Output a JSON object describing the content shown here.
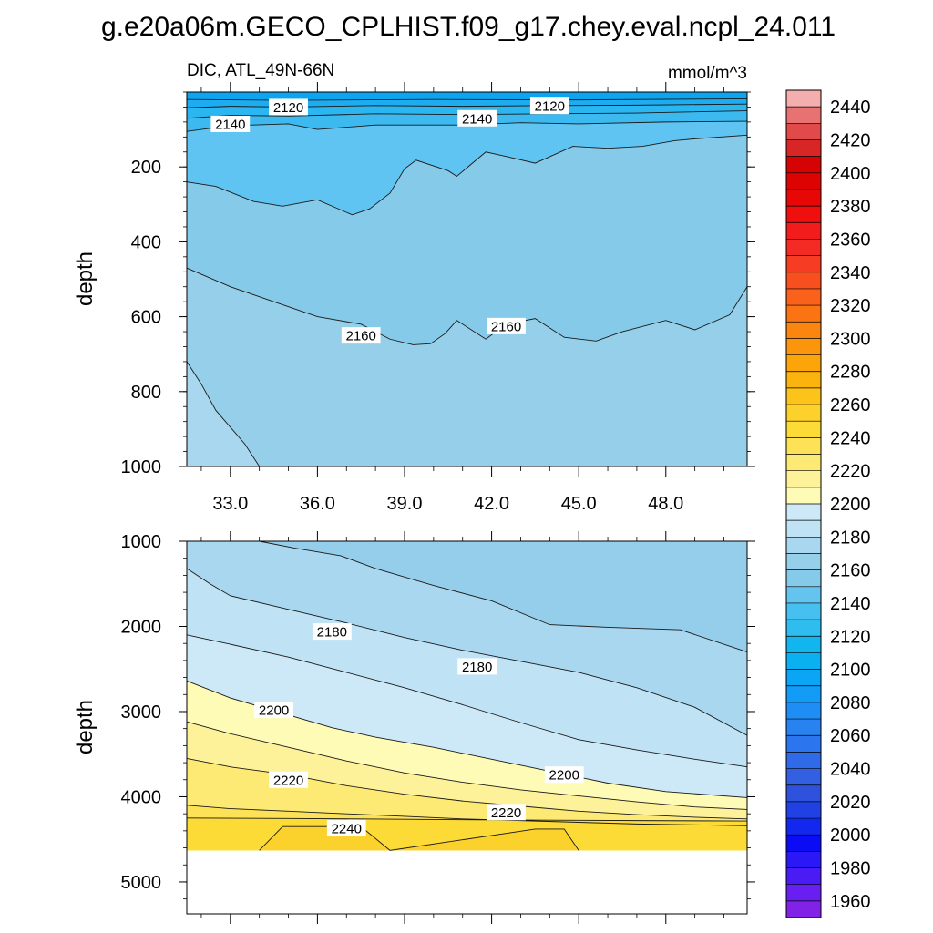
{
  "chart_data": [
    {
      "type": "contour",
      "panel": "top",
      "title": "g.e20a06m.GECO_CPLHIST.f09_g17.chey.eval.ncpl_24.011",
      "subtitle_left": "DIC, ATL_49N-66N",
      "subtitle_right": "mmol/m^3",
      "ylabel": "depth",
      "xlabel": "",
      "xlim": [
        31.5,
        50.8
      ],
      "ylim": [
        1000,
        0
      ],
      "y_reversed": true,
      "xticks": [
        "33.0",
        "36.0",
        "39.0",
        "42.0",
        "45.0",
        "48.0"
      ],
      "xtick_values": [
        33,
        36,
        39,
        42,
        45,
        48
      ],
      "yticks": [
        "200",
        "400",
        "600",
        "800",
        "1000"
      ],
      "ytick_values": [
        200,
        400,
        600,
        800,
        1000
      ],
      "contour_labels": [
        {
          "text": "2120",
          "x": 35.0,
          "y": 40
        },
        {
          "text": "2140",
          "x": 33.0,
          "y": 85
        },
        {
          "text": "2140",
          "x": 41.5,
          "y": 70
        },
        {
          "text": "2120",
          "x": 44.0,
          "y": 37
        },
        {
          "text": "2160",
          "x": 37.5,
          "y": 650
        },
        {
          "text": "2160",
          "x": 42.5,
          "y": 625
        }
      ],
      "contour_lines": [
        {
          "level": 2110,
          "x": [
            31.5,
            35,
            40,
            45,
            50.8
          ],
          "y": [
            20,
            22,
            20,
            21,
            18
          ]
        },
        {
          "level": 2120,
          "x": [
            31.5,
            33,
            35,
            38,
            41,
            44,
            47,
            50.8
          ],
          "y": [
            42,
            38,
            40,
            36,
            38,
            36,
            35,
            32
          ]
        },
        {
          "level": 2130,
          "x": [
            31.5,
            33,
            35,
            38,
            41,
            44,
            47,
            50.8
          ],
          "y": [
            70,
            62,
            64,
            58,
            60,
            58,
            56,
            50
          ]
        },
        {
          "level": 2140,
          "x": [
            31.5,
            33,
            35,
            36,
            38,
            41,
            43,
            45,
            48,
            50.8
          ],
          "y": [
            105,
            90,
            85,
            100,
            88,
            88,
            82,
            85,
            80,
            78
          ]
        },
        {
          "level": 2150,
          "x": [
            31.5,
            32.5,
            33.8,
            34.8,
            36,
            37.2,
            37.8,
            38.5,
            39.0,
            39.4,
            40.5,
            40.8,
            41.8,
            42.5,
            43.5,
            44.8,
            46.0,
            47.2,
            48.3,
            49.0,
            50.8
          ],
          "y": [
            240,
            252,
            292,
            305,
            288,
            328,
            312,
            270,
            205,
            182,
            210,
            225,
            160,
            172,
            190,
            145,
            150,
            145,
            130,
            125,
            115
          ]
        },
        {
          "level": 2160,
          "x": [
            31.5,
            33.0,
            34.5,
            36.0,
            37.5,
            38.5,
            39.3,
            39.9,
            40.4,
            40.8,
            41.8,
            42.5,
            43.5,
            44.5,
            45.6,
            46.5,
            48.0,
            49.0,
            50.2,
            50.8
          ],
          "y": [
            470,
            520,
            560,
            600,
            620,
            660,
            675,
            672,
            645,
            610,
            660,
            620,
            605,
            655,
            665,
            640,
            610,
            635,
            595,
            520
          ]
        },
        {
          "level": 2170,
          "x": [
            31.5,
            32.0,
            32.5,
            33.5,
            34.0
          ],
          "y": [
            720,
            780,
            850,
            940,
            1000
          ]
        }
      ],
      "fill_bands": [
        {
          "from": "top",
          "to": 2110,
          "color": "#0ea5ef"
        },
        {
          "from": 2110,
          "to": 2120,
          "color": "#1cacef"
        },
        {
          "from": 2120,
          "to": 2130,
          "color": "#2ab6f0"
        },
        {
          "from": 2130,
          "to": 2140,
          "color": "#3cbaf0"
        },
        {
          "from": 2140,
          "to": 2150,
          "color": "#5fc4f1"
        },
        {
          "from": 2150,
          "to": 2160,
          "color": "#86caea"
        },
        {
          "from": 2160,
          "to": 2170,
          "color": "#96cfea"
        },
        {
          "from": 2170,
          "to": "bottom",
          "color": "#a8d7ef"
        }
      ]
    },
    {
      "type": "contour",
      "panel": "bottom",
      "ylabel": "depth",
      "xlim": [
        31.5,
        50.8
      ],
      "ylim": [
        5375,
        1000
      ],
      "y_reversed": true,
      "yticks": [
        "1000",
        "2000",
        "3000",
        "4000",
        "5000"
      ],
      "ytick_values": [
        1000,
        2000,
        3000,
        4000,
        5000
      ],
      "data_bottom_depth": 4630,
      "contour_labels": [
        {
          "text": "2180",
          "x": 36.5,
          "y": 2060
        },
        {
          "text": "2180",
          "x": 41.5,
          "y": 2470
        },
        {
          "text": "2200",
          "x": 34.5,
          "y": 2980
        },
        {
          "text": "2200",
          "x": 44.5,
          "y": 3740
        },
        {
          "text": "2220",
          "x": 35.0,
          "y": 3800
        },
        {
          "text": "2220",
          "x": 42.5,
          "y": 4180
        },
        {
          "text": "2240",
          "x": 37.0,
          "y": 4370
        }
      ],
      "contour_lines": [
        {
          "level": 2170,
          "x": [
            34.0,
            35.2,
            36.8,
            38.0,
            40.0,
            42.0,
            44.0,
            46.0,
            48.5,
            50.8
          ],
          "y": [
            1000,
            1080,
            1170,
            1320,
            1520,
            1700,
            1980,
            2010,
            2040,
            2300
          ]
        },
        {
          "level": 2180,
          "x": [
            31.5,
            32.3,
            33.0,
            35.0,
            37.0,
            39.0,
            41.0,
            43.0,
            45.0,
            47.0,
            49.0,
            50.8
          ],
          "y": [
            1320,
            1500,
            1640,
            1800,
            1960,
            2130,
            2280,
            2410,
            2540,
            2720,
            2950,
            3280
          ]
        },
        {
          "level": 2190,
          "x": [
            31.5,
            33.0,
            35.0,
            37.0,
            39.0,
            41.0,
            43.0,
            45.0,
            47.0,
            49.0,
            50.8
          ],
          "y": [
            2100,
            2210,
            2360,
            2540,
            2720,
            2920,
            3130,
            3330,
            3450,
            3560,
            3650
          ]
        },
        {
          "level": 2200,
          "x": [
            31.5,
            33.0,
            35.0,
            36.5,
            38.0,
            40.0,
            42.0,
            44.0,
            46.0,
            48.0,
            50.8
          ],
          "y": [
            2640,
            2840,
            3040,
            3190,
            3300,
            3420,
            3560,
            3700,
            3840,
            3940,
            4010
          ]
        },
        {
          "level": 2210,
          "x": [
            31.5,
            33.0,
            35.0,
            37.0,
            39.0,
            41.0,
            43.0,
            45.0,
            47.0,
            49.0,
            50.8
          ],
          "y": [
            3120,
            3260,
            3420,
            3580,
            3720,
            3830,
            3920,
            3990,
            4060,
            4120,
            4150
          ]
        },
        {
          "level": 2220,
          "x": [
            31.5,
            33.0,
            35.0,
            37.0,
            39.0,
            41.0,
            43.0,
            45.0,
            47.0,
            49.0,
            50.8
          ],
          "y": [
            3550,
            3650,
            3740,
            3870,
            3970,
            4050,
            4110,
            4170,
            4210,
            4240,
            4260
          ]
        },
        {
          "level": 2230,
          "x": [
            31.5,
            33.0,
            35.0,
            37.0,
            39.0,
            41.0,
            43.0,
            45.0,
            47.0,
            49.0,
            50.8
          ],
          "y": [
            4100,
            4140,
            4170,
            4200,
            4230,
            4260,
            4280,
            4300,
            4320,
            4330,
            4340
          ]
        },
        {
          "level": 2235,
          "x": [
            31.5,
            35.0,
            38.0,
            41.0,
            44.0,
            47.0,
            50.8
          ],
          "y": [
            4250,
            4255,
            4262,
            4270,
            4275,
            4280,
            4285
          ]
        },
        {
          "level": 2240,
          "x": [
            34.0,
            34.8,
            37.5,
            38.5,
            43.5,
            44.5,
            45.0
          ],
          "y": [
            4630,
            4350,
            4350,
            4630,
            4380,
            4380,
            4630
          ],
          "closed_region": true
        }
      ],
      "fill_bands": [
        {
          "from": "top",
          "to": 2170,
          "color": "#95ceea"
        },
        {
          "from": 2170,
          "to": 2180,
          "color": "#a8d7ef"
        },
        {
          "from": 2180,
          "to": 2190,
          "color": "#bfe2f4"
        },
        {
          "from": 2190,
          "to": 2200,
          "color": "#cde9f8"
        },
        {
          "from": 2200,
          "to": 2210,
          "color": "#fdfbb6"
        },
        {
          "from": 2210,
          "to": 2220,
          "color": "#fdf29a"
        },
        {
          "from": 2220,
          "to": 2230,
          "color": "#fdea74"
        },
        {
          "from": 2230,
          "to": 2235,
          "color": "#fde258"
        },
        {
          "from": 2235,
          "to": "bottom",
          "color": "#fddb37"
        },
        {
          "from": "inner",
          "to": 2240,
          "color": "#fbd12b"
        }
      ]
    }
  ],
  "colorbar": {
    "title": "mmol/m^3",
    "levels": [
      1960,
      1970,
      1980,
      1990,
      2000,
      2010,
      2020,
      2030,
      2040,
      2050,
      2060,
      2070,
      2080,
      2090,
      2100,
      2110,
      2120,
      2130,
      2140,
      2150,
      2160,
      2170,
      2180,
      2190,
      2200,
      2210,
      2220,
      2230,
      2240,
      2250,
      2260,
      2270,
      2280,
      2290,
      2300,
      2310,
      2320,
      2330,
      2340,
      2350,
      2360,
      2370,
      2380,
      2390,
      2400,
      2410,
      2420,
      2430,
      2440,
      2450
    ],
    "labels": [
      "2440",
      "2420",
      "2400",
      "2380",
      "2360",
      "2340",
      "2320",
      "2300",
      "2280",
      "2260",
      "2240",
      "2220",
      "2200",
      "2180",
      "2160",
      "2140",
      "2120",
      "2100",
      "2080",
      "2060",
      "2040",
      "2020",
      "2000",
      "1980",
      "1960"
    ],
    "label_values": [
      2440,
      2420,
      2400,
      2380,
      2360,
      2340,
      2320,
      2300,
      2280,
      2260,
      2240,
      2220,
      2200,
      2180,
      2160,
      2140,
      2120,
      2100,
      2080,
      2060,
      2040,
      2020,
      2000,
      1980,
      1960
    ],
    "colors_bottom_to_top": [
      "#8222e6",
      "#6a1ff2",
      "#4a1bf5",
      "#2b18f6",
      "#0b0bf6",
      "#1228ef",
      "#2141e4",
      "#2f52dc",
      "#3260e0",
      "#2f6be8",
      "#2b76ef",
      "#2883f1",
      "#1e8ef4",
      "#129cf6",
      "#0aa6f5",
      "#0ab0f0",
      "#12b6ee",
      "#2fbcef",
      "#45c0f0",
      "#64c4ee",
      "#86caea",
      "#96cfea",
      "#a8d7ef",
      "#bfe2f4",
      "#cde9f8",
      "#fdfbb6",
      "#fdf29a",
      "#fdea74",
      "#fde258",
      "#fddb37",
      "#fcd12b",
      "#fcc31a",
      "#fbb40d",
      "#fba50a",
      "#fb960c",
      "#fb860f",
      "#fb7414",
      "#fa611a",
      "#f84f1f",
      "#f63c23",
      "#f42a25",
      "#f31c1c",
      "#f00f0f",
      "#e80707",
      "#de0303",
      "#d50303",
      "#d82626",
      "#e04a4a",
      "#e87272",
      "#f5aeae"
    ]
  }
}
